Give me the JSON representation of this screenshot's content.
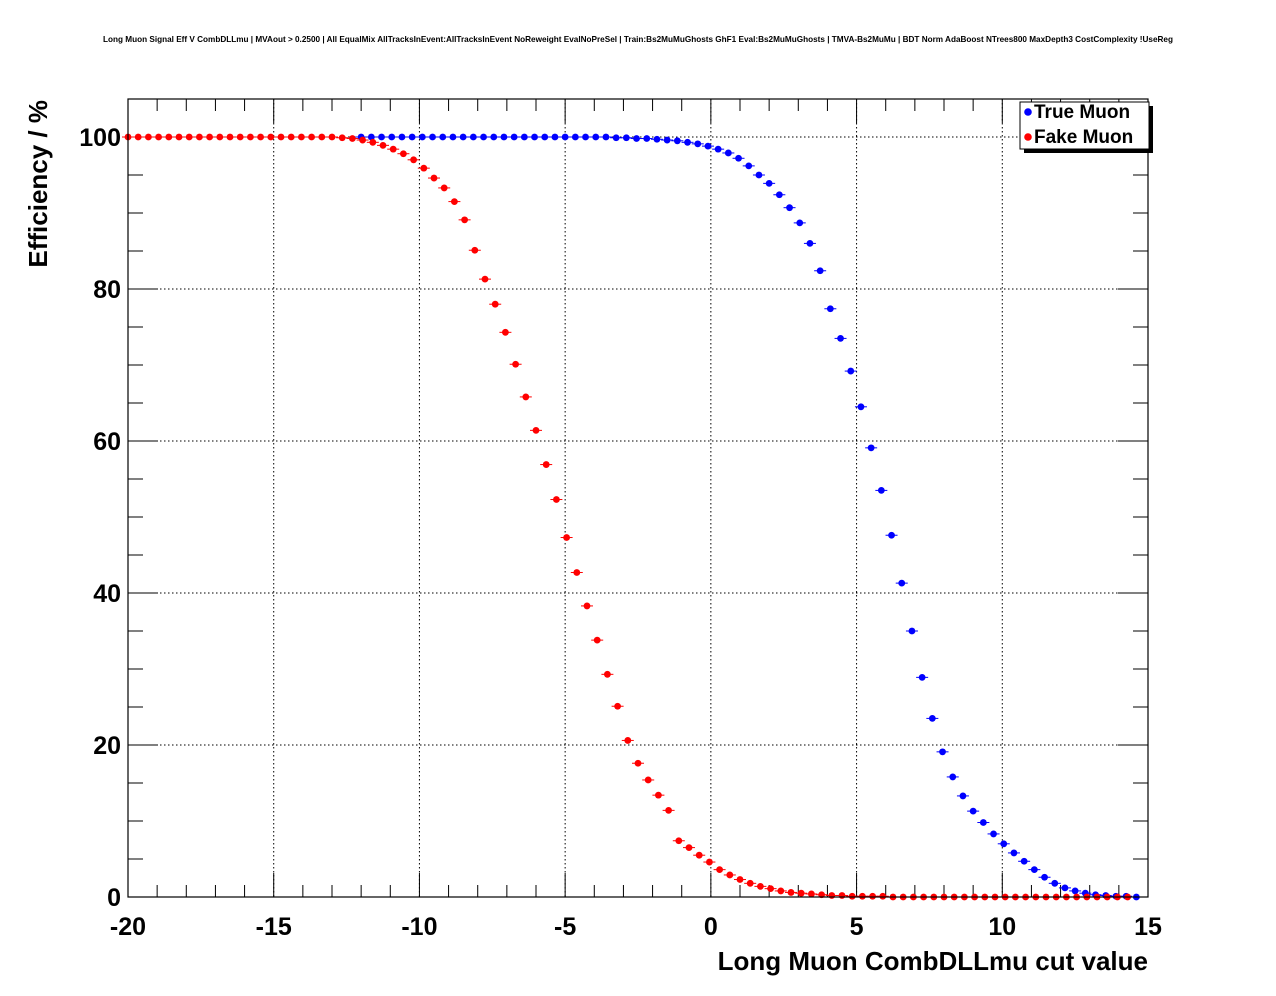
{
  "chart_data": {
    "type": "scatter",
    "title": "Long Muon Signal Eff V CombDLLmu | MVAout > 0.2500 | All EqualMix AllTracksInEvent:AllTracksInEvent NoReweight EvalNoPreSel | Train:Bs2MuMuGhosts GhF1 Eval:Bs2MuMuGhosts | TMVA-Bs2MuMu | BDT Norm AdaBoost NTrees800 MaxDepth3 CostComplexity !UseReg",
    "xlabel": "Long Muon CombDLLmu cut value",
    "ylabel": "Efficiency / %",
    "xlim": [
      -20,
      15
    ],
    "ylim": [
      0,
      105
    ],
    "x_ticks": [
      -20,
      -15,
      -10,
      -5,
      0,
      5,
      10,
      15
    ],
    "x_tick_labels": [
      "-20",
      "-15",
      "-10",
      "-5",
      "0",
      "5",
      "10",
      "15"
    ],
    "y_ticks": [
      0,
      20,
      40,
      60,
      80,
      100
    ],
    "y_tick_labels": [
      "0",
      "20",
      "40",
      "60",
      "80",
      "100"
    ],
    "grid": true,
    "legend_position": "top-right",
    "series": [
      {
        "name": "True Muon",
        "color": "#0000ff",
        "x": [
          -12.0,
          -11.65,
          -11.3,
          -10.95,
          -10.6,
          -10.25,
          -9.9,
          -9.55,
          -9.2,
          -8.85,
          -8.5,
          -8.15,
          -7.8,
          -7.45,
          -7.1,
          -6.75,
          -6.4,
          -6.05,
          -5.7,
          -5.35,
          -5.0,
          -4.65,
          -4.3,
          -3.95,
          -3.6,
          -3.25,
          -2.9,
          -2.55,
          -2.2,
          -1.85,
          -1.5,
          -1.15,
          -0.8,
          -0.45,
          -0.1,
          0.25,
          0.6,
          0.95,
          1.3,
          1.65,
          2.0,
          2.35,
          2.7,
          3.05,
          3.4,
          3.75,
          4.1,
          4.45,
          4.8,
          5.15,
          5.5,
          5.85,
          6.2,
          6.55,
          6.9,
          7.25,
          7.6,
          7.95,
          8.3,
          8.65,
          9.0,
          9.35,
          9.7,
          10.05,
          10.4,
          10.75,
          11.1,
          11.45,
          11.8,
          12.15,
          12.5,
          12.85,
          13.2,
          13.55,
          13.9,
          14.25,
          14.6
        ],
        "y": [
          100.0,
          100.0,
          100.0,
          100.0,
          100.0,
          100.0,
          100.0,
          100.0,
          100.0,
          100.0,
          100.0,
          100.0,
          100.0,
          100.0,
          100.0,
          100.0,
          100.0,
          100.0,
          100.0,
          100.0,
          100.0,
          100.0,
          100.0,
          100.0,
          100.0,
          99.9,
          99.9,
          99.8,
          99.8,
          99.7,
          99.6,
          99.5,
          99.3,
          99.1,
          98.8,
          98.4,
          97.9,
          97.2,
          96.2,
          95.0,
          93.9,
          92.4,
          90.7,
          88.7,
          86.0,
          82.4,
          77.4,
          73.5,
          69.2,
          64.5,
          59.1,
          53.5,
          47.6,
          41.3,
          35.0,
          28.9,
          23.5,
          19.1,
          15.8,
          13.3,
          11.3,
          9.8,
          8.3,
          7.0,
          5.8,
          4.7,
          3.6,
          2.6,
          1.8,
          1.2,
          0.8,
          0.5,
          0.3,
          0.2,
          0.1,
          0.1,
          0.0
        ]
      },
      {
        "name": "Fake Muon",
        "color": "#ff0000",
        "x": [
          -20.0,
          -19.65,
          -19.3,
          -18.95,
          -18.6,
          -18.25,
          -17.9,
          -17.55,
          -17.2,
          -16.85,
          -16.5,
          -16.15,
          -15.8,
          -15.45,
          -15.1,
          -14.75,
          -14.4,
          -14.05,
          -13.7,
          -13.35,
          -13.0,
          -12.65,
          -12.3,
          -11.95,
          -11.6,
          -11.25,
          -10.9,
          -10.55,
          -10.2,
          -9.85,
          -9.5,
          -9.15,
          -8.8,
          -8.45,
          -8.1,
          -7.75,
          -7.4,
          -7.05,
          -6.7,
          -6.35,
          -6.0,
          -5.65,
          -5.3,
          -4.95,
          -4.6,
          -4.25,
          -3.9,
          -3.55,
          -3.2,
          -2.85,
          -2.5,
          -2.15,
          -1.8,
          -1.45,
          -1.1,
          -0.75,
          -0.4,
          -0.05,
          0.3,
          0.65,
          1.0,
          1.35,
          1.7,
          2.05,
          2.4,
          2.75,
          3.1,
          3.45,
          3.8,
          4.15,
          4.5,
          4.85,
          5.2,
          5.55,
          5.9,
          6.25,
          6.6,
          6.95,
          7.3,
          7.65,
          8.0,
          8.35,
          8.7,
          9.05,
          9.4,
          9.75,
          10.1,
          10.45,
          10.8,
          11.15,
          11.5,
          11.85,
          12.2,
          12.55,
          12.9,
          13.25,
          13.6,
          13.95,
          14.3
        ],
        "y": [
          100.0,
          100.0,
          100.0,
          100.0,
          100.0,
          100.0,
          100.0,
          100.0,
          100.0,
          100.0,
          100.0,
          100.0,
          100.0,
          100.0,
          100.0,
          100.0,
          100.0,
          100.0,
          100.0,
          100.0,
          100.0,
          99.9,
          99.8,
          99.6,
          99.3,
          98.9,
          98.4,
          97.8,
          97.0,
          95.9,
          94.6,
          93.3,
          91.5,
          89.1,
          85.1,
          81.3,
          78.0,
          74.3,
          70.1,
          65.8,
          61.4,
          56.9,
          52.3,
          47.3,
          42.7,
          38.3,
          33.8,
          29.3,
          25.1,
          20.6,
          17.6,
          15.4,
          13.4,
          11.4,
          7.4,
          6.5,
          5.5,
          4.6,
          3.6,
          2.9,
          2.3,
          1.8,
          1.4,
          1.1,
          0.8,
          0.6,
          0.5,
          0.4,
          0.3,
          0.2,
          0.2,
          0.1,
          0.1,
          0.1,
          0.1,
          0.0,
          0.0,
          0.0,
          0.0,
          0.0,
          0.0,
          0.0,
          0.0,
          0.0,
          0.0,
          0.0,
          0.0,
          0.0,
          0.0,
          0.0,
          0.0,
          0.0,
          0.0,
          0.0,
          0.0,
          0.0,
          0.0,
          0.0,
          0.0
        ]
      }
    ]
  }
}
